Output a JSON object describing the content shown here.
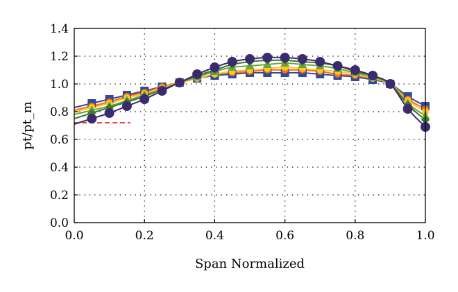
{
  "chart_data": {
    "type": "line",
    "title": "",
    "xlabel": "Span Normalized",
    "ylabel": "pt/pt_m",
    "xlim": [
      0.0,
      1.0
    ],
    "ylim": [
      0.0,
      1.4
    ],
    "xticks": [
      "0.0",
      "0.2",
      "0.4",
      "0.6",
      "0.8",
      "1.0"
    ],
    "yticks": [
      "0.0",
      "0.2",
      "0.4",
      "0.6",
      "0.8",
      "1.0",
      "1.2",
      "1.4"
    ],
    "grid": "dotted",
    "legend": "none",
    "x": [
      0.05,
      0.1,
      0.15,
      0.2,
      0.25,
      0.3,
      0.35,
      0.4,
      0.45,
      0.5,
      0.55,
      0.6,
      0.65,
      0.7,
      0.75,
      0.8,
      0.85,
      0.9,
      0.95,
      1.0
    ],
    "series": [
      {
        "marker": "square",
        "color": "#2e4a9a",
        "values": [
          0.86,
          0.89,
          0.92,
          0.95,
          0.98,
          1.01,
          1.04,
          1.06,
          1.07,
          1.08,
          1.08,
          1.08,
          1.08,
          1.07,
          1.06,
          1.05,
          1.03,
          1.0,
          0.91,
          0.84
        ]
      },
      {
        "marker": "circle",
        "color": "#ff6a1a",
        "values": [
          0.84,
          0.87,
          0.91,
          0.94,
          0.98,
          1.01,
          1.04,
          1.07,
          1.08,
          1.09,
          1.1,
          1.1,
          1.1,
          1.09,
          1.07,
          1.06,
          1.04,
          1.0,
          0.89,
          0.82
        ]
      },
      {
        "marker": "circle",
        "color": "#ffc71a",
        "values": [
          0.83,
          0.86,
          0.9,
          0.93,
          0.97,
          1.01,
          1.04,
          1.07,
          1.09,
          1.1,
          1.11,
          1.12,
          1.11,
          1.1,
          1.09,
          1.07,
          1.04,
          1.0,
          0.88,
          0.8
        ]
      },
      {
        "marker": "triangle",
        "color": "#6aa53c",
        "values": [
          0.81,
          0.84,
          0.88,
          0.92,
          0.96,
          1.01,
          1.05,
          1.09,
          1.12,
          1.13,
          1.14,
          1.15,
          1.14,
          1.13,
          1.11,
          1.08,
          1.05,
          1.0,
          0.86,
          0.77
        ]
      },
      {
        "marker": "diamond",
        "color": "#3a7a2e",
        "values": [
          0.79,
          0.83,
          0.87,
          0.91,
          0.96,
          1.01,
          1.06,
          1.1,
          1.14,
          1.16,
          1.17,
          1.17,
          1.16,
          1.15,
          1.13,
          1.09,
          1.06,
          1.0,
          0.85,
          0.74
        ]
      },
      {
        "marker": "circle",
        "color": "#3c2a6e",
        "values": [
          0.75,
          0.79,
          0.84,
          0.89,
          0.95,
          1.01,
          1.07,
          1.12,
          1.16,
          1.18,
          1.19,
          1.19,
          1.18,
          1.16,
          1.13,
          1.1,
          1.06,
          1.0,
          0.82,
          0.69
        ]
      }
    ],
    "reference_line": {
      "color": "#e8332a",
      "style": "dashed",
      "y": 0.72,
      "x_range": [
        0.0,
        0.16
      ]
    }
  }
}
